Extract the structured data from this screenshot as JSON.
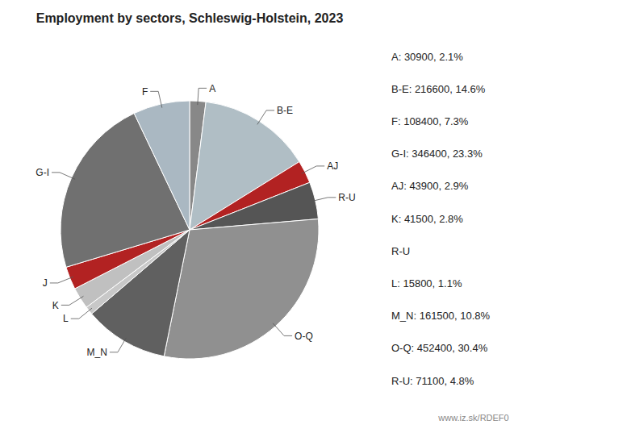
{
  "chart_data": {
    "type": "pie",
    "title": "Employment by sectors, Schleswig-Holstein, 2023",
    "categories": [
      "A",
      "B-E",
      "AJ",
      "R-U",
      "O-Q",
      "M_N",
      "L",
      "K",
      "J",
      "G-I",
      "F"
    ],
    "values": [
      30900,
      216600,
      43900,
      71100,
      452400,
      161500,
      15800,
      41500,
      43900,
      346400,
      108400
    ],
    "colors": [
      "#888888",
      "#b0bec5",
      "#b22222",
      "#555555",
      "#909090",
      "#606060",
      "#c8c8c8",
      "#c0c0c0",
      "#b22222",
      "#707070",
      "#aab8c2"
    ],
    "annotations": [
      "A: 30900, 2.1%",
      "B-E: 216600, 14.6%",
      "F: 108400, 7.3%",
      "G-I: 346400, 23.3%",
      "AJ: 43900, 2.9%",
      "K: 41500, 2.8%",
      "R-U",
      "L: 15800, 1.1%",
      "M_N: 161500, 10.8%",
      "O-Q: 452400, 30.4%",
      "R-U: 71100, 4.8%",
      "www.iz.sk/RDEF0"
    ]
  }
}
